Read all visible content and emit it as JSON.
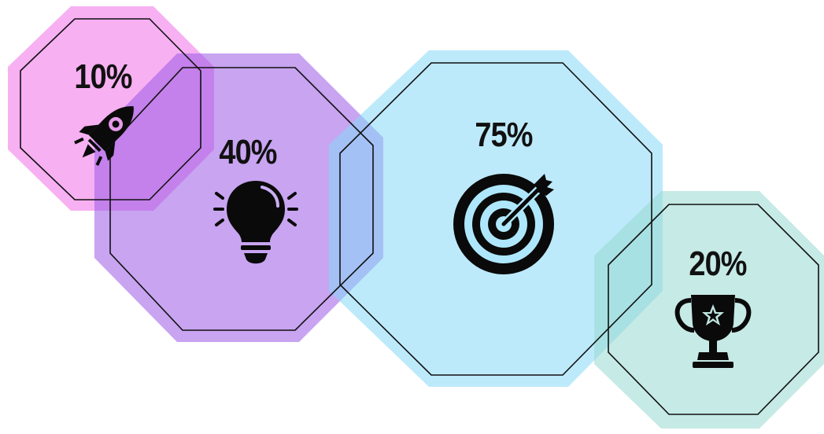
{
  "items": [
    {
      "id": "rocket",
      "value": "10%",
      "icon": "rocket-icon",
      "color": "#f06fe8"
    },
    {
      "id": "idea",
      "value": "40%",
      "icon": "lightbulb-icon",
      "color": "#9b59e6"
    },
    {
      "id": "target",
      "value": "75%",
      "icon": "target-icon",
      "color": "#86d9f7"
    },
    {
      "id": "trophy",
      "value": "20%",
      "icon": "trophy-icon",
      "color": "#97d8d0"
    }
  ]
}
